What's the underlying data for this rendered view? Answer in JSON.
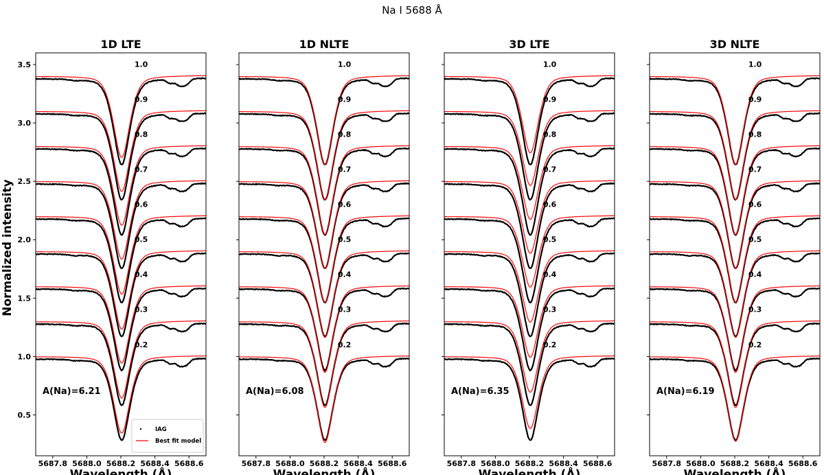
{
  "chart_data": {
    "type": "line",
    "title": "Na I 5688 Å",
    "ylabel": "Normalized intensity",
    "xlabel": "Wavelength (Å)",
    "xlim": [
      5687.7,
      5688.7
    ],
    "ylim": [
      0.15,
      3.6
    ],
    "xticks": [
      5687.8,
      5688.0,
      5688.2,
      5688.4,
      5688.6
    ],
    "xtick_labels": [
      "5687.8",
      "5688.0",
      "5688.2",
      "5688.4",
      "5688.6"
    ],
    "yticks": [
      0.5,
      1.0,
      1.5,
      2.0,
      2.5,
      3.0,
      3.5
    ],
    "ytick_labels": [
      "0.5",
      "1.0",
      "1.5",
      "2.0",
      "2.5",
      "3.0",
      "3.5"
    ],
    "line_center": 5688.205,
    "mu_values": [
      "1.0",
      "0.9",
      "0.8",
      "0.7",
      "0.6",
      "0.5",
      "0.4",
      "0.3",
      "0.2"
    ],
    "mu_offsets": [
      2.4,
      2.1,
      1.8,
      1.5,
      1.2,
      0.9,
      0.6,
      0.3,
      0.0
    ],
    "observed_continuum_at_left_edge": [
      3.38,
      3.08,
      2.78,
      2.48,
      2.18,
      1.88,
      1.58,
      1.28,
      0.98
    ],
    "observed_core_depth": [
      2.64,
      2.34,
      2.04,
      1.75,
      1.46,
      1.17,
      0.88,
      0.58,
      0.28
    ],
    "legend": {
      "location": "lower right",
      "entries": [
        "IAG",
        "Best fit model"
      ]
    },
    "colors": {
      "observed": "#000000",
      "model": "#ff0000"
    },
    "panels": [
      {
        "title": "1D LTE",
        "abundance": "A(Na)=6.21",
        "show_legend": true,
        "model_core_depth": [
          2.7,
          2.41,
          2.12,
          1.83,
          1.53,
          1.23,
          0.94,
          0.64,
          0.34
        ]
      },
      {
        "title": "1D NLTE",
        "abundance": "A(Na)=6.08",
        "show_legend": false,
        "model_core_depth": [
          2.64,
          2.34,
          2.04,
          1.75,
          1.46,
          1.16,
          0.86,
          0.56,
          0.26
        ]
      },
      {
        "title": "3D LTE",
        "abundance": "A(Na)=6.35",
        "show_legend": false,
        "model_core_depth": [
          2.74,
          2.46,
          2.17,
          1.88,
          1.59,
          1.29,
          0.99,
          0.69,
          0.38
        ]
      },
      {
        "title": "3D NLTE",
        "abundance": "A(Na)=6.19",
        "show_legend": false,
        "model_core_depth": [
          2.64,
          2.34,
          2.04,
          1.75,
          1.46,
          1.16,
          0.86,
          0.56,
          0.27
        ]
      }
    ]
  }
}
